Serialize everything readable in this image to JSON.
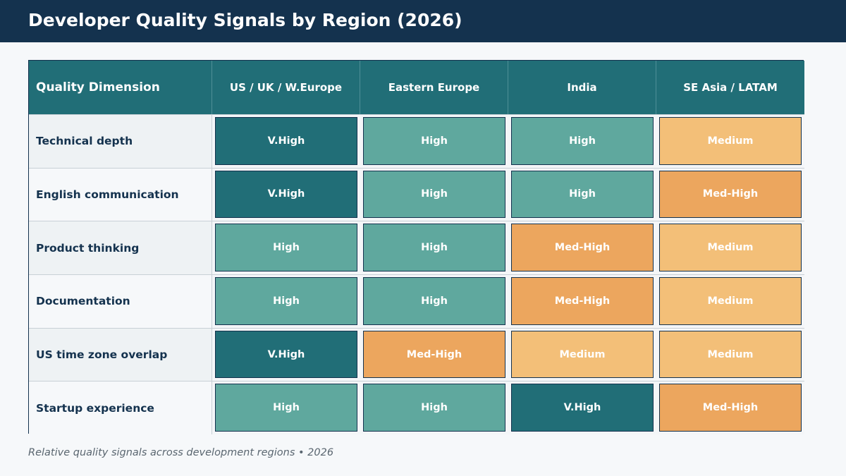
{
  "title": "Developer Quality Signals by Region (2026)",
  "footer": "Relative quality signals across development regions  •  2026",
  "colors": {
    "V.High": "#216e77",
    "High": "#5fa89e",
    "Med-High": "#eca65e",
    "Medium": "#f3bf78"
  },
  "chart_data": {
    "type": "table",
    "columns": [
      "Quality Dimension",
      "US / UK / W.Europe",
      "Eastern Europe",
      "India",
      "SE Asia / LATAM"
    ],
    "rows": [
      {
        "dimension": "Technical depth",
        "values": [
          "V.High",
          "High",
          "High",
          "Medium"
        ]
      },
      {
        "dimension": "English communication",
        "values": [
          "V.High",
          "High",
          "High",
          "Med-High"
        ]
      },
      {
        "dimension": "Product thinking",
        "values": [
          "High",
          "High",
          "Med-High",
          "Medium"
        ]
      },
      {
        "dimension": "Documentation",
        "values": [
          "High",
          "High",
          "Med-High",
          "Medium"
        ]
      },
      {
        "dimension": "US time zone overlap",
        "values": [
          "V.High",
          "Med-High",
          "Medium",
          "Medium"
        ]
      },
      {
        "dimension": "Startup experience",
        "values": [
          "High",
          "High",
          "V.High",
          "Med-High"
        ]
      }
    ]
  }
}
